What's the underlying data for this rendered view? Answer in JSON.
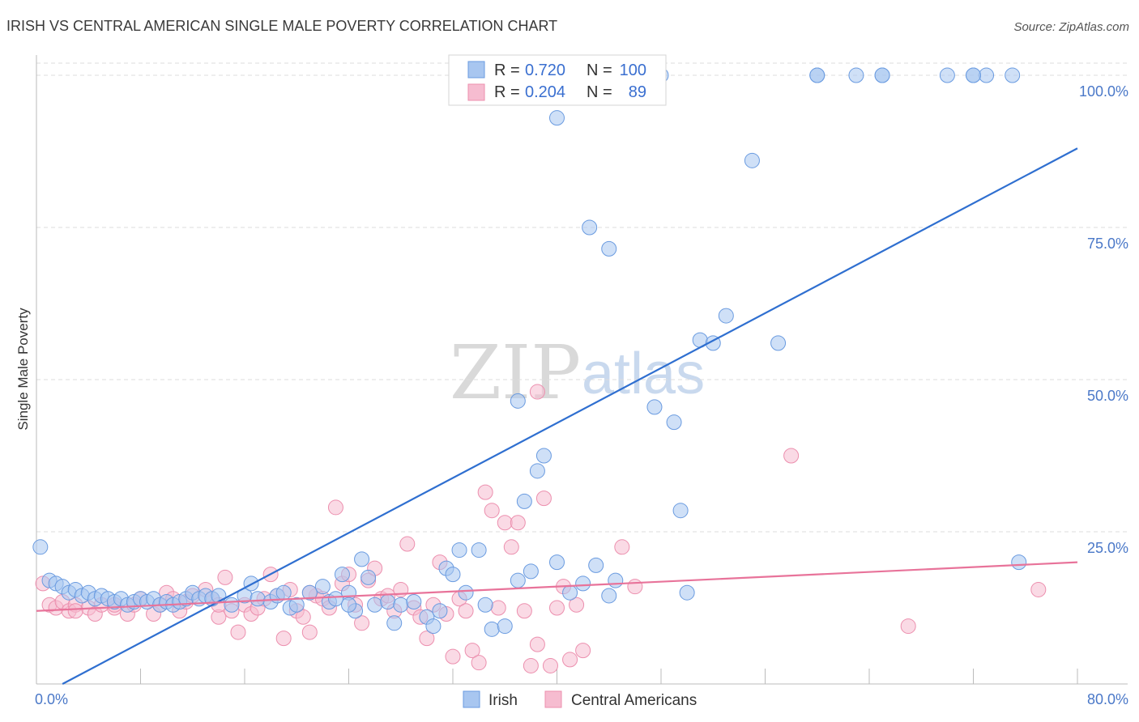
{
  "header": {
    "title": "IRISH VS CENTRAL AMERICAN SINGLE MALE POVERTY CORRELATION CHART",
    "source": "Source: ZipAtlas.com"
  },
  "watermark": {
    "zip": "ZIP",
    "atlas": "atlas"
  },
  "legend": {
    "rows": [
      {
        "r_label": "R =",
        "r_value": "0.720",
        "n_label": "N =",
        "n_value": "100",
        "color": "#a8c6f0"
      },
      {
        "r_label": "R =",
        "r_value": "0.204",
        "n_label": "N =",
        "n_value": "89",
        "color": "#f6bcd0"
      }
    ]
  },
  "bottom_legend": {
    "irish": "Irish",
    "central": "Central Americans"
  },
  "colors": {
    "irish_fill": "#a8c6f0",
    "irish_stroke": "#6a9be0",
    "irish_line": "#2f6fd0",
    "central_fill": "#f6bcd0",
    "central_stroke": "#ec8fae",
    "central_line": "#e8739a",
    "grid": "#dddddd",
    "axis": "#bbbbbb"
  },
  "chart_data": {
    "type": "scatter",
    "title": "IRISH VS CENTRAL AMERICAN SINGLE MALE POVERTY CORRELATION CHART",
    "xlabel": "",
    "ylabel": "Single Male Poverty",
    "xlim": [
      0,
      80
    ],
    "ylim": [
      0,
      102
    ],
    "x_tick_labels": [
      "0.0%",
      "80.0%"
    ],
    "y_ticks": [
      25,
      50,
      75,
      100
    ],
    "y_tick_labels": [
      "25.0%",
      "50.0%",
      "75.0%",
      "100.0%"
    ],
    "grid": true,
    "legend_position": "top-center",
    "series": [
      {
        "name": "Irish",
        "r": 0.72,
        "n": 100,
        "trend": [
          [
            2,
            0
          ],
          [
            80,
            88
          ]
        ],
        "points": [
          [
            0.3,
            22.5
          ],
          [
            1,
            17
          ],
          [
            1.5,
            16.5
          ],
          [
            2,
            16
          ],
          [
            2.5,
            15
          ],
          [
            3,
            15.5
          ],
          [
            3.5,
            14.5
          ],
          [
            4,
            15
          ],
          [
            4.5,
            14
          ],
          [
            5,
            14.5
          ],
          [
            5.5,
            14
          ],
          [
            6,
            13.5
          ],
          [
            6.5,
            14
          ],
          [
            7,
            13
          ],
          [
            7.5,
            13.5
          ],
          [
            8,
            14
          ],
          [
            8.5,
            13.5
          ],
          [
            9,
            14
          ],
          [
            9.5,
            13
          ],
          [
            10,
            13.5
          ],
          [
            10.5,
            13
          ],
          [
            11,
            13.5
          ],
          [
            11.5,
            14
          ],
          [
            12,
            15
          ],
          [
            12.5,
            14
          ],
          [
            13,
            14.5
          ],
          [
            13.5,
            14
          ],
          [
            14,
            14.5
          ],
          [
            15,
            13
          ],
          [
            16,
            14.5
          ],
          [
            16.5,
            16.5
          ],
          [
            17,
            14
          ],
          [
            18,
            13.5
          ],
          [
            18.5,
            14.5
          ],
          [
            19,
            15
          ],
          [
            19.5,
            12.5
          ],
          [
            20,
            13
          ],
          [
            21,
            15
          ],
          [
            22,
            16
          ],
          [
            22.5,
            13.5
          ],
          [
            23,
            14
          ],
          [
            23.5,
            18
          ],
          [
            24,
            15
          ],
          [
            24.5,
            12
          ],
          [
            25,
            20.5
          ],
          [
            25.5,
            17.5
          ],
          [
            26,
            13
          ],
          [
            27,
            13.5
          ],
          [
            27.5,
            10
          ],
          [
            28,
            13
          ],
          [
            29,
            13.5
          ],
          [
            30,
            11
          ],
          [
            30.5,
            9.5
          ],
          [
            31,
            12
          ],
          [
            31.5,
            19
          ],
          [
            32,
            18
          ],
          [
            32.5,
            22
          ],
          [
            33,
            15
          ],
          [
            34,
            22
          ],
          [
            34.5,
            13
          ],
          [
            35,
            9
          ],
          [
            36,
            9.5
          ],
          [
            37,
            17
          ],
          [
            37.5,
            30
          ],
          [
            38,
            18.5
          ],
          [
            38.5,
            35
          ],
          [
            39,
            37.5
          ],
          [
            40,
            20
          ],
          [
            41,
            15
          ],
          [
            42,
            16.5
          ],
          [
            43,
            19.5
          ],
          [
            44,
            14.5
          ],
          [
            44.5,
            17
          ],
          [
            37,
            46.5
          ],
          [
            42.5,
            75
          ],
          [
            44,
            71.5
          ],
          [
            47.5,
            45.5
          ],
          [
            48,
            100
          ],
          [
            47,
            100
          ],
          [
            49,
            43
          ],
          [
            49.5,
            28.5
          ],
          [
            50,
            15
          ],
          [
            51,
            56.5
          ],
          [
            52,
            56
          ],
          [
            53,
            60.5
          ],
          [
            57,
            56
          ],
          [
            55,
            86
          ],
          [
            60,
            100
          ],
          [
            63,
            100
          ],
          [
            65,
            100
          ],
          [
            70,
            100
          ],
          [
            72,
            100
          ],
          [
            73,
            100
          ],
          [
            75,
            100
          ],
          [
            75.5,
            20
          ],
          [
            40,
            93
          ],
          [
            60,
            100
          ],
          [
            65,
            100
          ],
          [
            72,
            100
          ],
          [
            24,
            13
          ]
        ]
      },
      {
        "name": "Central Americans",
        "r": 0.204,
        "n": 89,
        "trend": [
          [
            0,
            12
          ],
          [
            80,
            20
          ]
        ],
        "points": [
          [
            0.5,
            16.5
          ],
          [
            1,
            13
          ],
          [
            1.5,
            12.5
          ],
          [
            2,
            13.5
          ],
          [
            2.5,
            12
          ],
          [
            3,
            13
          ],
          [
            4,
            12.5
          ],
          [
            4.5,
            11.5
          ],
          [
            5,
            13
          ],
          [
            6,
            12.5
          ],
          [
            7,
            11.5
          ],
          [
            7.5,
            13
          ],
          [
            8,
            14
          ],
          [
            9,
            11.5
          ],
          [
            9.5,
            13
          ],
          [
            10,
            15
          ],
          [
            10.5,
            14
          ],
          [
            11,
            12
          ],
          [
            11.5,
            13.5
          ],
          [
            12,
            14.5
          ],
          [
            13,
            15.5
          ],
          [
            13.5,
            14
          ],
          [
            14,
            11
          ],
          [
            14.5,
            17.5
          ],
          [
            15,
            12
          ],
          [
            15.5,
            8.5
          ],
          [
            16,
            13
          ],
          [
            16.5,
            11.5
          ],
          [
            17,
            12.5
          ],
          [
            17.5,
            14
          ],
          [
            18,
            18
          ],
          [
            18.5,
            14.5
          ],
          [
            19,
            7.5
          ],
          [
            19.5,
            15.5
          ],
          [
            20,
            12
          ],
          [
            20.5,
            11
          ],
          [
            21,
            8.5
          ],
          [
            21.5,
            14.5
          ],
          [
            22,
            14
          ],
          [
            22.5,
            12.5
          ],
          [
            23,
            29
          ],
          [
            23.5,
            16.5
          ],
          [
            24,
            18
          ],
          [
            24.5,
            13
          ],
          [
            25,
            10
          ],
          [
            25.5,
            17
          ],
          [
            26,
            19
          ],
          [
            26.5,
            14
          ],
          [
            27,
            14.5
          ],
          [
            27.5,
            12
          ],
          [
            28,
            15.5
          ],
          [
            28.5,
            23
          ],
          [
            29,
            12.5
          ],
          [
            29.5,
            11
          ],
          [
            30,
            7.5
          ],
          [
            30.5,
            13
          ],
          [
            31,
            20
          ],
          [
            31.5,
            11.5
          ],
          [
            32,
            4.5
          ],
          [
            32.5,
            14
          ],
          [
            33,
            12
          ],
          [
            33.5,
            5.5
          ],
          [
            34,
            3.5
          ],
          [
            34.5,
            31.5
          ],
          [
            35,
            28.5
          ],
          [
            35.5,
            12.5
          ],
          [
            36,
            26.5
          ],
          [
            36.5,
            22.5
          ],
          [
            37,
            26.5
          ],
          [
            37.5,
            12
          ],
          [
            38,
            3
          ],
          [
            38.5,
            6.5
          ],
          [
            39,
            30.5
          ],
          [
            39.5,
            3
          ],
          [
            40,
            12.5
          ],
          [
            40.5,
            16
          ],
          [
            41,
            4
          ],
          [
            41.5,
            13
          ],
          [
            42,
            5.5
          ],
          [
            45,
            22.5
          ],
          [
            46,
            16
          ],
          [
            58,
            37.5
          ],
          [
            67,
            9.5
          ],
          [
            77,
            15.5
          ],
          [
            38.5,
            48
          ],
          [
            21,
            15
          ],
          [
            14,
            13
          ],
          [
            6,
            13
          ],
          [
            3,
            12
          ]
        ]
      }
    ]
  }
}
